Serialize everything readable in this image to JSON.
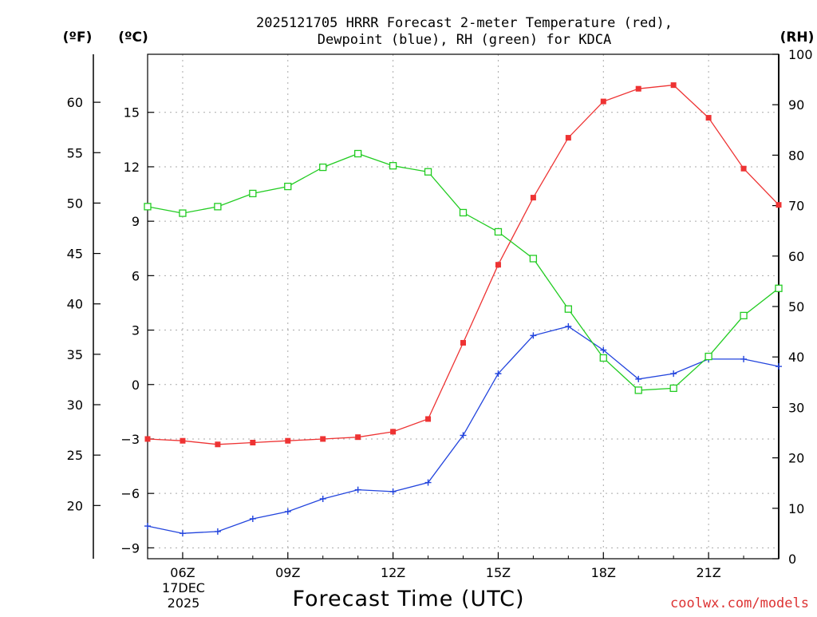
{
  "chart_data": {
    "type": "line",
    "title_line1": "2025121705 HRRR Forecast 2-meter Temperature (red),",
    "title_line2": "Dewpoint (blue), RH (green) for KDCA",
    "xlabel": "Forecast Time (UTC)",
    "unit_labels": {
      "fahrenheit": "(ºF)",
      "celsius": "(ºC)",
      "rh": "(RH)"
    },
    "date_label": {
      "line1": "17DEC",
      "line2": "2025"
    },
    "credit": "coolwx.com/models",
    "x_hours": [
      5,
      6,
      7,
      8,
      9,
      10,
      11,
      12,
      13,
      14,
      15,
      16,
      17,
      18,
      19,
      20,
      21,
      22,
      23
    ],
    "x_range_hours": [
      5,
      23
    ],
    "x_ticks": [
      {
        "hour": 6,
        "label": "06Z"
      },
      {
        "hour": 9,
        "label": "09Z"
      },
      {
        "hour": 12,
        "label": "12Z"
      },
      {
        "hour": 15,
        "label": "15Z"
      },
      {
        "hour": 18,
        "label": "18Z"
      },
      {
        "hour": 21,
        "label": "21Z"
      }
    ],
    "celsius_axis": {
      "range": [
        -9.6,
        18.2
      ],
      "ticks": [
        -9,
        -6,
        -3,
        0,
        3,
        6,
        9,
        12,
        15
      ],
      "tick_labels": [
        "−9",
        "−6",
        "−3",
        "0",
        "3",
        "6",
        "9",
        "12",
        "15"
      ]
    },
    "fahrenheit_axis": {
      "ticks": [
        20,
        25,
        30,
        35,
        40,
        45,
        50,
        55,
        60
      ],
      "tick_labels": [
        "20",
        "25",
        "30",
        "35",
        "40",
        "45",
        "50",
        "55",
        "60"
      ]
    },
    "rh_axis": {
      "range": [
        0,
        100
      ],
      "ticks": [
        0,
        10,
        20,
        30,
        40,
        50,
        60,
        70,
        80,
        90,
        100
      ],
      "tick_labels": [
        "0",
        "10",
        "20",
        "30",
        "40",
        "50",
        "60",
        "70",
        "80",
        "90",
        "100"
      ]
    },
    "series": [
      {
        "name": "2-meter Temperature",
        "axis": "celsius",
        "color": "#ee3333",
        "marker": "filled-square",
        "values": [
          -3.0,
          -3.1,
          -3.3,
          -3.2,
          -3.1,
          -3.0,
          -2.9,
          -2.6,
          -1.9,
          2.3,
          6.6,
          10.3,
          13.6,
          15.6,
          16.3,
          16.5,
          14.7,
          11.9,
          9.9
        ]
      },
      {
        "name": "Dewpoint",
        "axis": "celsius",
        "color": "#2244dd",
        "marker": "plus",
        "values": [
          -7.8,
          -8.2,
          -8.1,
          -7.4,
          -7.0,
          -6.3,
          -5.8,
          -5.9,
          -5.4,
          -2.8,
          0.6,
          2.7,
          3.2,
          1.9,
          0.3,
          0.6,
          1.4,
          1.4,
          1.0
        ]
      },
      {
        "name": "RH",
        "axis": "rh",
        "color": "#22cc22",
        "marker": "open-square",
        "values": [
          69.8,
          68.5,
          69.8,
          72.4,
          73.8,
          77.6,
          80.3,
          77.9,
          76.7,
          68.6,
          64.8,
          59.5,
          49.5,
          39.8,
          33.4,
          33.8,
          40.1,
          48.2,
          53.6
        ]
      }
    ]
  }
}
